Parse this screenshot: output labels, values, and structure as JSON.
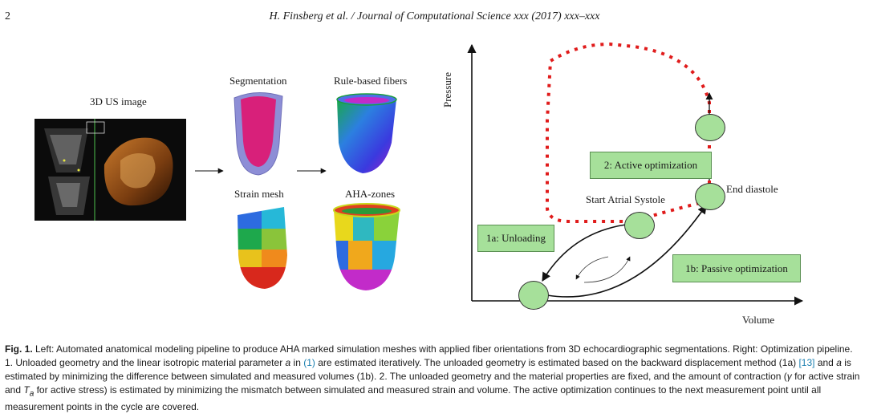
{
  "header": {
    "page_number": "2",
    "running_head": "H. Finsberg et al. / Journal of Computational Science xxx (2017) xxx–xxx"
  },
  "figure_left": {
    "us_image_label": "3D US image",
    "segmentation_label": "Segmentation",
    "fibers_label": "Rule-based fibers",
    "strain_mesh_label": "Strain mesh",
    "aha_label": "AHA-zones"
  },
  "figure_right": {
    "y_axis_label": "Pressure",
    "x_axis_label": "Volume",
    "box_unloading": "1a: Unloading",
    "box_active": "2: Active optimization",
    "box_passive": "1b: Passive optimization",
    "label_start_atrial": "Start Atrial Systole",
    "label_end_diastole": "End diastole",
    "colors": {
      "box_fill": "#a6e09a",
      "loop_dots": "#e01b1b"
    }
  },
  "caption": {
    "fig_id": "Fig. 1.",
    "text_1": " Left: Automated anatomical modeling pipeline to produce AHA marked simulation meshes with applied fiber orientations from 3D echocardiographic segmentations. Right: Optimization pipeline. 1. Unloaded geometry and the linear isotropic material parameter ",
    "sym_a": "a",
    "text_2": " in ",
    "ref_eq1": "(1)",
    "text_3": " are estimated iteratively. The unloaded geometry is estimated based on the backward displacement method (1a) ",
    "ref_13": "[13]",
    "text_4": " and ",
    "sym_a2": "a",
    "text_5": " is estimated by minimizing the difference between simulated and measured volumes (1b). 2. The unloaded geometry and the material properties are fixed, and the amount of contraction (",
    "sym_gamma": "γ",
    "text_6": " for active strain and ",
    "sym_ta": "T",
    "sym_ta_sub": "a",
    "text_7": " for active stress) is estimated by minimizing the mismatch between simulated and measured strain and volume. The active optimization continues to the next measurement point until all measurement points in the cycle are covered."
  }
}
